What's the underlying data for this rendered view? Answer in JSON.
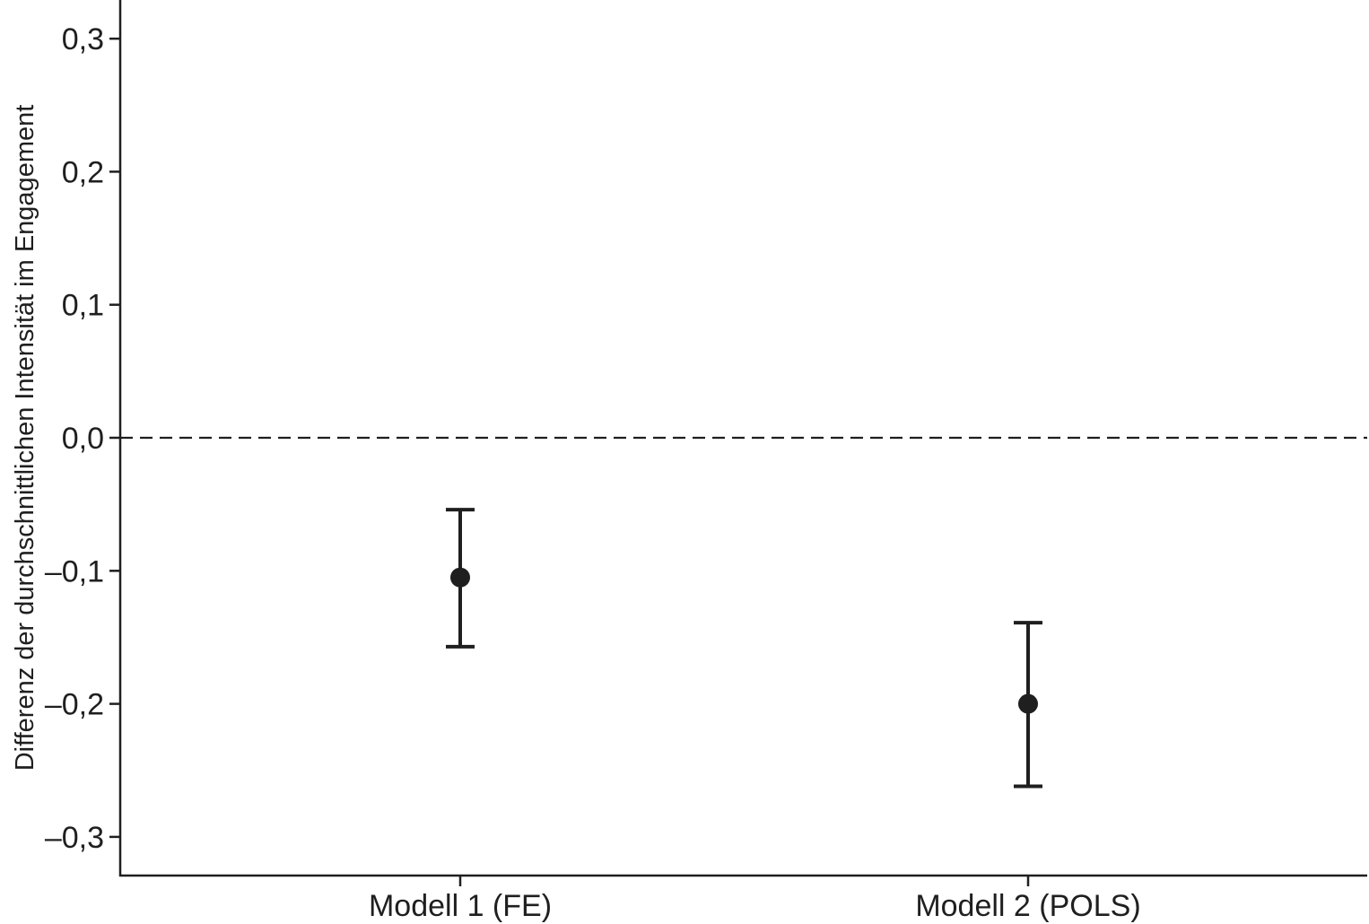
{
  "chart_data": {
    "type": "scatter",
    "title": "",
    "xlabel": "",
    "ylabel": "Differenz der durchschnittlichen Intensität im Engagement",
    "ylim": [
      -0.33,
      0.33
    ],
    "yticks": [
      0.3,
      0.2,
      0.1,
      0.0,
      -0.1,
      -0.2,
      -0.3
    ],
    "ytick_labels": [
      "0,3",
      "0,2",
      "0,1",
      "0,0",
      "–0,1",
      "–0,2",
      "–0,3"
    ],
    "categories": [
      "Modell 1 (FE)",
      "Modell 2 (POLS)"
    ],
    "points": [
      {
        "category": "Modell 1 (FE)",
        "estimate": -0.105,
        "ci_lower": -0.157,
        "ci_upper": -0.054
      },
      {
        "category": "Modell 2 (POLS)",
        "estimate": -0.2,
        "ci_lower": -0.262,
        "ci_upper": -0.139
      }
    ],
    "reference_line": 0.0,
    "grid": false,
    "legend": "none",
    "colors": {
      "marker": "#1f1f1f",
      "axis": "#1f1f1f",
      "reference_line": "#1f1f1f"
    }
  }
}
